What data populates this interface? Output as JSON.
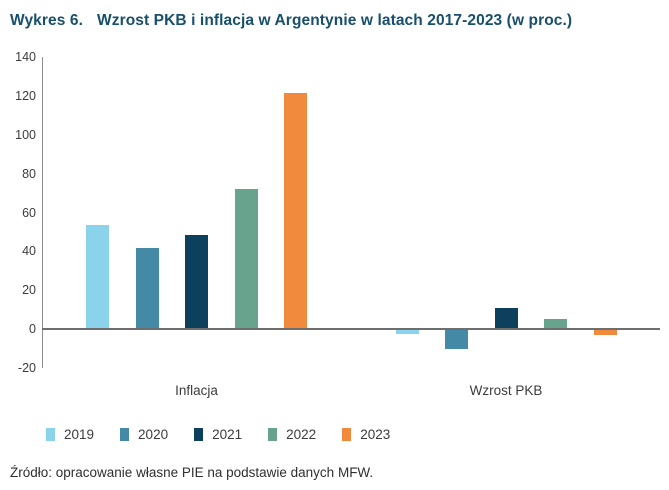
{
  "header": {
    "prefix": "Wykres 6.",
    "title": "Wzrost PKB i inflacja w Argentynie w latach 2017-2023 (w proc.)"
  },
  "chart_data": {
    "type": "bar",
    "categories": [
      "Inflacja",
      "Wzrost PKB"
    ],
    "series": [
      {
        "name": "2019",
        "color": "#8BD3EA",
        "values": [
          53.5,
          -2.0
        ]
      },
      {
        "name": "2020",
        "color": "#4489A6",
        "values": [
          42.0,
          -9.9
        ]
      },
      {
        "name": "2021",
        "color": "#0C405C",
        "values": [
          48.4,
          10.7
        ]
      },
      {
        "name": "2022",
        "color": "#67A38D",
        "values": [
          72.4,
          5.0
        ]
      },
      {
        "name": "2023",
        "color": "#F28A3E",
        "values": [
          121.7,
          -2.5
        ]
      }
    ],
    "ylim": [
      -20,
      140
    ],
    "yticks": [
      140,
      120,
      100,
      80,
      60,
      40,
      20,
      0,
      -20
    ],
    "grid": false,
    "legend_position": "bottom",
    "unit": "proc."
  },
  "footer": {
    "source": "Źródło: opracowanie własne PIE na podstawie danych MFW."
  }
}
